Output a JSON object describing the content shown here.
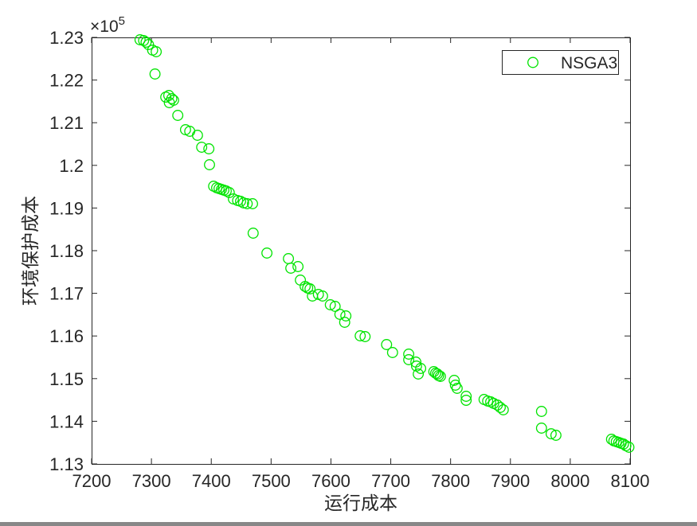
{
  "figure": {
    "background": "#ffffff",
    "axis_color": "#262626",
    "exponent_base": "×10",
    "exponent_power": "5"
  },
  "chart_data": {
    "type": "scatter",
    "title": "",
    "xlabel": "运行成本",
    "ylabel": "环境保护成本",
    "xlim": [
      7200,
      8100
    ],
    "ylim": [
      113000,
      123000
    ],
    "grid": false,
    "y_scale_exponent": "×10^5",
    "legend": {
      "position": "top-right",
      "label": "NSGA3"
    },
    "x_ticks": [
      7200,
      7300,
      7400,
      7500,
      7600,
      7700,
      7800,
      7900,
      8000,
      8100
    ],
    "x_tick_labels": [
      "7200",
      "7300",
      "7400",
      "7500",
      "7600",
      "7700",
      "7800",
      "7900",
      "8000",
      "8100"
    ],
    "y_ticks": [
      113000,
      114000,
      115000,
      116000,
      117000,
      118000,
      119000,
      120000,
      121000,
      122000,
      123000
    ],
    "y_tick_labels": [
      "1.13",
      "1.14",
      "1.15",
      "1.16",
      "1.17",
      "1.18",
      "1.19",
      "1.2",
      "1.21",
      "1.22",
      "1.23"
    ],
    "series": [
      {
        "name": "NSGA3",
        "marker": "circle",
        "marker_color": "#00e400",
        "points": [
          [
            7281,
            122944
          ],
          [
            7287,
            122925
          ],
          [
            7291,
            122888
          ],
          [
            7295,
            122832
          ],
          [
            7302,
            122701
          ],
          [
            7308,
            122664
          ],
          [
            7306,
            122142
          ],
          [
            7324,
            121601
          ],
          [
            7329,
            121638
          ],
          [
            7334,
            121563
          ],
          [
            7330,
            121470
          ],
          [
            7337,
            121526
          ],
          [
            7344,
            121171
          ],
          [
            7357,
            120836
          ],
          [
            7364,
            120798
          ],
          [
            7377,
            120705
          ],
          [
            7384,
            120425
          ],
          [
            7396,
            120388
          ],
          [
            7397,
            120015
          ],
          [
            7404,
            119511
          ],
          [
            7409,
            119474
          ],
          [
            7413,
            119455
          ],
          [
            7417,
            119436
          ],
          [
            7421,
            119418
          ],
          [
            7425,
            119399
          ],
          [
            7430,
            119362
          ],
          [
            7437,
            119213
          ],
          [
            7444,
            119175
          ],
          [
            7449,
            119157
          ],
          [
            7454,
            119119
          ],
          [
            7460,
            119101
          ],
          [
            7469,
            119101
          ],
          [
            7470,
            118410
          ],
          [
            7493,
            117944
          ],
          [
            7529,
            117813
          ],
          [
            7533,
            117589
          ],
          [
            7545,
            117627
          ],
          [
            7549,
            117309
          ],
          [
            7557,
            117160
          ],
          [
            7561,
            117123
          ],
          [
            7565,
            117104
          ],
          [
            7569,
            116936
          ],
          [
            7579,
            116974
          ],
          [
            7586,
            116936
          ],
          [
            7599,
            116731
          ],
          [
            7607,
            116694
          ],
          [
            7615,
            116507
          ],
          [
            7625,
            116470
          ],
          [
            7623,
            116321
          ],
          [
            7649,
            116004
          ],
          [
            7657,
            115985
          ],
          [
            7693,
            115798
          ],
          [
            7703,
            115612
          ],
          [
            7730,
            115574
          ],
          [
            7730,
            115444
          ],
          [
            7742,
            115388
          ],
          [
            7743,
            115294
          ],
          [
            7750,
            115239
          ],
          [
            7746,
            115108
          ],
          [
            7772,
            115164
          ],
          [
            7775,
            115126
          ],
          [
            7778,
            115108
          ],
          [
            7780,
            115070
          ],
          [
            7783,
            115052
          ],
          [
            7806,
            114959
          ],
          [
            7808,
            114847
          ],
          [
            7811,
            114772
          ],
          [
            7826,
            114585
          ],
          [
            7826,
            114492
          ],
          [
            7856,
            114511
          ],
          [
            7862,
            114473
          ],
          [
            7867,
            114455
          ],
          [
            7872,
            114417
          ],
          [
            7878,
            114380
          ],
          [
            7883,
            114324
          ],
          [
            7888,
            114268
          ],
          [
            7952,
            114231
          ],
          [
            7952,
            113839
          ],
          [
            7968,
            113708
          ],
          [
            7976,
            113671
          ],
          [
            8069,
            113578
          ],
          [
            8073,
            113540
          ],
          [
            8077,
            113522
          ],
          [
            8081,
            113503
          ],
          [
            8085,
            113484
          ],
          [
            8089,
            113466
          ],
          [
            8093,
            113428
          ],
          [
            8098,
            113391
          ]
        ]
      }
    ]
  }
}
